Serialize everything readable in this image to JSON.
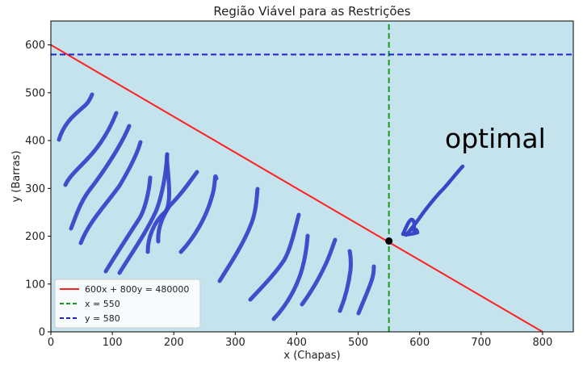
{
  "chart_data": {
    "type": "line",
    "title": "Região Viável para as Restrições",
    "xlabel": "x (Chapas)",
    "ylabel": "y (Barras)",
    "xlim": [
      0,
      850
    ],
    "ylim": [
      0,
      650
    ],
    "x_ticks": [
      0,
      100,
      200,
      300,
      400,
      500,
      600,
      700,
      800
    ],
    "y_ticks": [
      0,
      100,
      200,
      300,
      400,
      500,
      600
    ],
    "grid": false,
    "background_color": "#c5e3ed",
    "series": [
      {
        "name": "600x + 800y = 480000",
        "color": "#ff2020",
        "style": "solid",
        "x": [
          0,
          800
        ],
        "y": [
          600,
          0
        ]
      },
      {
        "name": "x = 550",
        "color": "#1a9a1a",
        "style": "dashed",
        "x": [
          550,
          550
        ],
        "y": [
          0,
          650
        ]
      },
      {
        "name": "y = 580",
        "color": "#1f1fd8",
        "style": "dashed",
        "x": [
          0,
          850
        ],
        "y": [
          580,
          580
        ]
      }
    ],
    "legend": {
      "position": "bottom-left",
      "entries": [
        "600x + 800y = 480000",
        "x = 550",
        "y = 580"
      ]
    },
    "points": [
      {
        "x": 550,
        "y": 190
      }
    ],
    "annotations": [
      {
        "text": "optimal",
        "color": "#000000"
      }
    ],
    "hatch_color": "#3a45c8"
  }
}
